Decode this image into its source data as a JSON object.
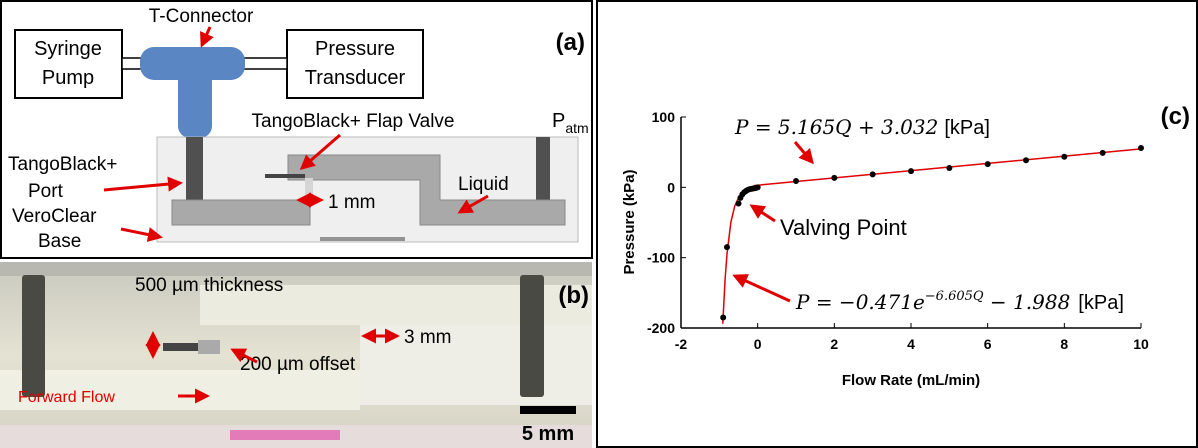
{
  "panel_a": {
    "label": "(a)",
    "syringe_pump": [
      "Syringe",
      "Pump"
    ],
    "t_connector": "T-Connector",
    "pressure_transducer": [
      "Pressure",
      "Transducer"
    ],
    "flap_valve": "TangoBlack+ Flap Valve",
    "p_atm": {
      "main": "P",
      "sub": "atm"
    },
    "port": [
      "TangoBlack+",
      "Port"
    ],
    "liquid": "Liquid",
    "gap": "1 mm",
    "base": [
      "VeroClear",
      "Base"
    ]
  },
  "panel_b": {
    "label": "(b)",
    "thickness": "500 µm thickness",
    "offset": "200 µm offset",
    "width": "3 mm",
    "flow": "Forward Flow",
    "scale": "5 mm"
  },
  "chart_data": {
    "type": "scatter",
    "label": "(c)",
    "x_label": "Flow Rate (mL/min)",
    "y_label": "Pressure (kPa)",
    "xlim": [
      -2,
      10
    ],
    "ylim": [
      -200,
      100
    ],
    "xticks": [
      -2,
      0,
      2,
      4,
      6,
      8,
      10
    ],
    "yticks": [
      -200,
      -100,
      0,
      100
    ],
    "series": [
      {
        "color": "#000000",
        "x": [
          -0.9,
          -0.8,
          -0.5,
          -0.45,
          -0.4,
          -0.35,
          -0.3,
          -0.25,
          -0.2,
          -0.15,
          -0.1,
          -0.05,
          0,
          1,
          2,
          3,
          4,
          5,
          6,
          7,
          8,
          9,
          10
        ],
        "values": [
          -185,
          -85,
          -23,
          -15,
          -10,
          -7,
          -5,
          -3.5,
          -2.5,
          -2,
          -1.5,
          -1,
          0,
          9,
          13.5,
          18.5,
          23,
          27.5,
          33,
          38.5,
          43.5,
          49,
          56
        ]
      },
      {
        "color": "#e00000",
        "x": [
          -0.1,
          10
        ],
        "values": [
          2.5,
          54.7
        ]
      },
      {
        "color": "#e00000",
        "x": [
          -0.91,
          -0.85,
          -0.8,
          -0.7,
          -0.6,
          -0.5,
          -0.4,
          -0.3,
          -0.2,
          -0.1,
          0
        ],
        "values": [
          -194,
          -131,
          -94.8,
          -49.9,
          -26.8,
          -14.8,
          -8.6,
          -5.4,
          -3.8,
          -2.9,
          -2.5
        ]
      }
    ],
    "equation_1": {
      "math": "P = 5.165Q + 3.032",
      "unit": "[kPa]"
    },
    "equation_2": {
      "main": "P = −0.471e",
      "exponent": "−6.605Q",
      "tail": " − 1.988",
      "unit": "[kPa]"
    },
    "valving_point": "Valving Point"
  }
}
